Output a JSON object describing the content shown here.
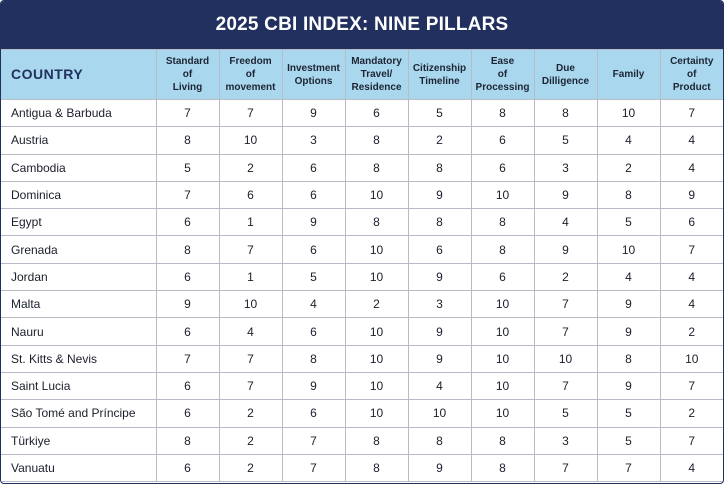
{
  "title": "2025 CBI INDEX: NINE PILLARS",
  "headers": {
    "country": "COUNTRY",
    "pillars": [
      "Standard\nof\nLiving",
      "Freedom\nof\nmovement",
      "Investment\nOptions",
      "Mandatory\nTravel/\nResidence",
      "Citizenship\nTimeline",
      "Ease\nof\nProcessing",
      "Due\nDilligence",
      "Family",
      "Certainty\nof\nProduct"
    ]
  },
  "rows": [
    {
      "country": "Antigua & Barbuda",
      "scores": [
        "7",
        "7",
        "9",
        "6",
        "5",
        "8",
        "8",
        "10",
        "7"
      ]
    },
    {
      "country": "Austria",
      "scores": [
        "8",
        "10",
        "3",
        "8",
        "2",
        "6",
        "5",
        "4",
        "4"
      ]
    },
    {
      "country": "Cambodia",
      "scores": [
        "5",
        "2",
        "6",
        "8",
        "8",
        "6",
        "3",
        "2",
        "4"
      ]
    },
    {
      "country": "Dominica",
      "scores": [
        "7",
        "6",
        "6",
        "10",
        "9",
        "10",
        "9",
        "8",
        "9"
      ]
    },
    {
      "country": "Egypt",
      "scores": [
        "6",
        "1",
        "9",
        "8",
        "8",
        "8",
        "4",
        "5",
        "6"
      ]
    },
    {
      "country": "Grenada",
      "scores": [
        "8",
        "7",
        "6",
        "10",
        "6",
        "8",
        "9",
        "10",
        "7"
      ]
    },
    {
      "country": "Jordan",
      "scores": [
        "6",
        "1",
        "5",
        "10",
        "9",
        "6",
        "2",
        "4",
        "4"
      ]
    },
    {
      "country": "Malta",
      "scores": [
        "9",
        "10",
        "4",
        "2",
        "3",
        "10",
        "7",
        "9",
        "4"
      ]
    },
    {
      "country": "Nauru",
      "scores": [
        "6",
        "4",
        "6",
        "10",
        "9",
        "10",
        "7",
        "9",
        "2"
      ]
    },
    {
      "country": "St. Kitts & Nevis",
      "scores": [
        "7",
        "7",
        "8",
        "10",
        "9",
        "10",
        "10",
        "8",
        "10"
      ]
    },
    {
      "country": "Saint Lucia",
      "scores": [
        "6",
        "7",
        "9",
        "10",
        "4",
        "10",
        "7",
        "9",
        "7"
      ]
    },
    {
      "country": "São Tomé and Príncipe",
      "scores": [
        "6",
        "2",
        "6",
        "10",
        "10",
        "10",
        "5",
        "5",
        "2"
      ]
    },
    {
      "country": "Türkiye",
      "scores": [
        "8",
        "2",
        "7",
        "8",
        "8",
        "8",
        "3",
        "5",
        "7"
      ]
    },
    {
      "country": "Vanuatu",
      "scores": [
        "6",
        "2",
        "7",
        "8",
        "9",
        "8",
        "7",
        "7",
        "4"
      ]
    }
  ],
  "colors": {
    "title_background": "#22305f",
    "header_background": "#a9d7ee",
    "border": "#b7bcc6"
  }
}
